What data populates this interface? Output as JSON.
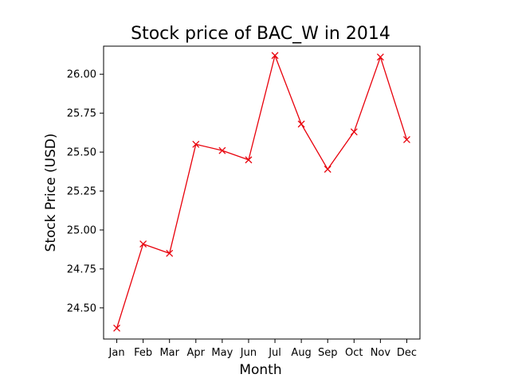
{
  "chart_data": {
    "type": "line",
    "title": "Stock price of BAC_W in 2014",
    "xlabel": "Month",
    "ylabel": "Stock Price (USD)",
    "categories": [
      "Jan",
      "Feb",
      "Mar",
      "Apr",
      "May",
      "Jun",
      "Jul",
      "Aug",
      "Sep",
      "Oct",
      "Nov",
      "Dec"
    ],
    "series": [
      {
        "values": [
          24.37,
          24.91,
          24.85,
          25.55,
          25.51,
          25.45,
          26.12,
          25.68,
          25.39,
          25.63,
          26.11,
          25.58
        ],
        "color": "#e8000b",
        "marker": "x"
      }
    ],
    "ylim": [
      24.3,
      26.18
    ],
    "yticks": [
      24.5,
      24.75,
      25.0,
      25.25,
      25.5,
      25.75,
      26.0
    ],
    "ytick_labels": [
      "24.50",
      "24.75",
      "25.00",
      "25.25",
      "25.50",
      "25.75",
      "26.00"
    ],
    "grid": false,
    "legend": "none"
  }
}
